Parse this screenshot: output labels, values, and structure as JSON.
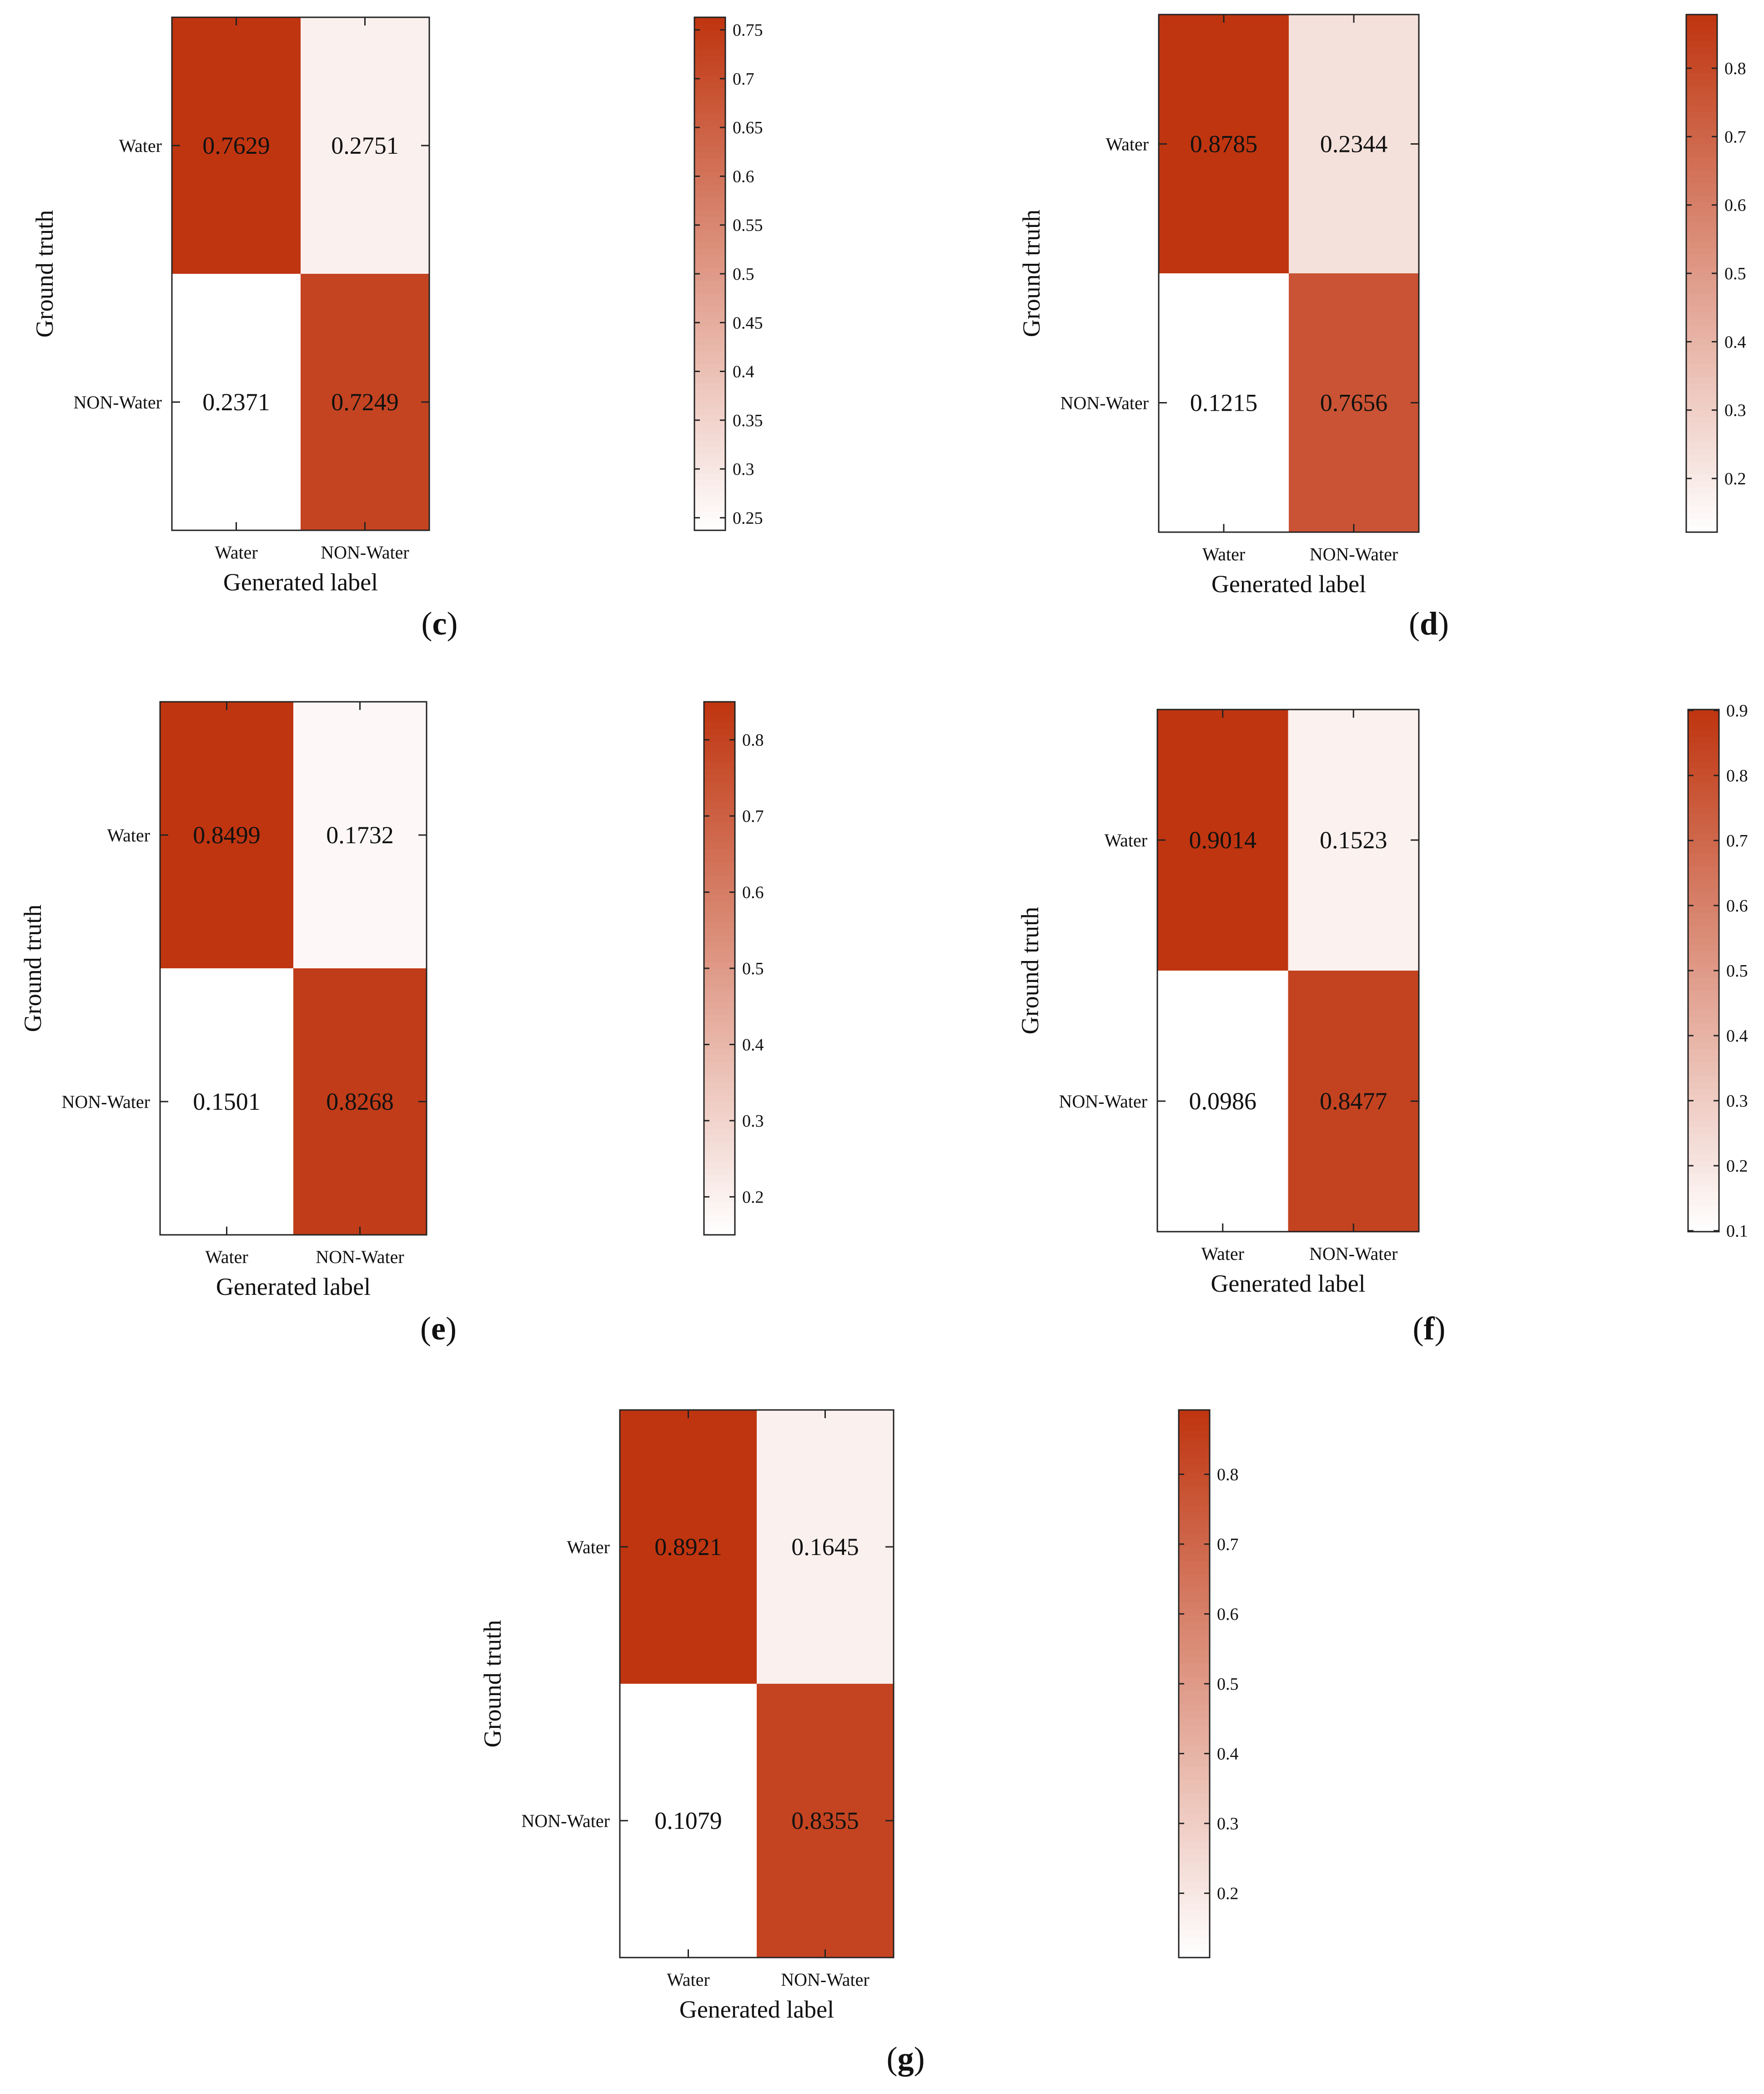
{
  "figure": {
    "color_low": "#ffffff",
    "color_high": "#bf3510"
  },
  "chart_data": [
    {
      "type": "heatmap",
      "panel_label": "c",
      "title": "",
      "xlabel": "Generated label",
      "ylabel": "Ground truth",
      "x_categories": [
        "Water",
        "NON-Water"
      ],
      "y_categories": [
        "Water",
        "NON-Water"
      ],
      "values": [
        [
          0.7629,
          0.2751
        ],
        [
          0.2371,
          0.7249
        ]
      ],
      "value_labels": [
        [
          "0.7629",
          "0.2751"
        ],
        [
          "0.2371",
          "0.7249"
        ]
      ],
      "colorbar": {
        "min": 0.2371,
        "max": 0.7629,
        "ticks": [
          0.25,
          0.3,
          0.35,
          0.4,
          0.45,
          0.5,
          0.55,
          0.6,
          0.65,
          0.7,
          0.75
        ],
        "tick_labels": [
          "0.25",
          "0.3",
          "0.35",
          "0.4",
          "0.45",
          "0.5",
          "0.55",
          "0.6",
          "0.65",
          "0.7",
          "0.75"
        ]
      }
    },
    {
      "type": "heatmap",
      "panel_label": "d",
      "title": "",
      "xlabel": "Generated label",
      "ylabel": "Ground truth",
      "x_categories": [
        "Water",
        "NON-Water"
      ],
      "y_categories": [
        "Water",
        "NON-Water"
      ],
      "values": [
        [
          0.8785,
          0.2344
        ],
        [
          0.1215,
          0.7656
        ]
      ],
      "value_labels": [
        [
          "0.8785",
          "0.2344"
        ],
        [
          "0.1215",
          "0.7656"
        ]
      ],
      "colorbar": {
        "min": 0.1215,
        "max": 0.8785,
        "ticks": [
          0.2,
          0.3,
          0.4,
          0.5,
          0.6,
          0.7,
          0.8
        ],
        "tick_labels": [
          "0.2",
          "0.3",
          "0.4",
          "0.5",
          "0.6",
          "0.7",
          "0.8"
        ]
      }
    },
    {
      "type": "heatmap",
      "panel_label": "e",
      "title": "",
      "xlabel": "Generated label",
      "ylabel": "Ground truth",
      "x_categories": [
        "Water",
        "NON-Water"
      ],
      "y_categories": [
        "Water",
        "NON-Water"
      ],
      "values": [
        [
          0.8499,
          0.1732
        ],
        [
          0.1501,
          0.8268
        ]
      ],
      "value_labels": [
        [
          "0.8499",
          "0.1732"
        ],
        [
          "0.1501",
          "0.8268"
        ]
      ],
      "colorbar": {
        "min": 0.1501,
        "max": 0.8499,
        "ticks": [
          0.2,
          0.3,
          0.4,
          0.5,
          0.6,
          0.7,
          0.8
        ],
        "tick_labels": [
          "0.2",
          "0.3",
          "0.4",
          "0.5",
          "0.6",
          "0.7",
          "0.8"
        ]
      }
    },
    {
      "type": "heatmap",
      "panel_label": "f",
      "title": "",
      "xlabel": "Generated label",
      "ylabel": "Ground truth",
      "x_categories": [
        "Water",
        "NON-Water"
      ],
      "y_categories": [
        "Water",
        "NON-Water"
      ],
      "values": [
        [
          0.9014,
          0.1523
        ],
        [
          0.0986,
          0.8477
        ]
      ],
      "value_labels": [
        [
          "0.9014",
          "0.1523"
        ],
        [
          "0.0986",
          "0.8477"
        ]
      ],
      "colorbar": {
        "min": 0.0986,
        "max": 0.9014,
        "ticks": [
          0.1,
          0.2,
          0.3,
          0.4,
          0.5,
          0.6,
          0.7,
          0.8,
          0.9
        ],
        "tick_labels": [
          "0.1",
          "0.2",
          "0.3",
          "0.4",
          "0.5",
          "0.6",
          "0.7",
          "0.8",
          "0.9"
        ]
      }
    },
    {
      "type": "heatmap",
      "panel_label": "g",
      "title": "",
      "xlabel": "Generated label",
      "ylabel": "Ground truth",
      "x_categories": [
        "Water",
        "NON-Water"
      ],
      "y_categories": [
        "Water",
        "NON-Water"
      ],
      "values": [
        [
          0.8921,
          0.1645
        ],
        [
          0.1079,
          0.8355
        ]
      ],
      "value_labels": [
        [
          "0.8921",
          "0.1645"
        ],
        [
          "0.1079",
          "0.8355"
        ]
      ],
      "colorbar": {
        "min": 0.1079,
        "max": 0.8921,
        "ticks": [
          0.2,
          0.3,
          0.4,
          0.5,
          0.6,
          0.7,
          0.8
        ],
        "tick_labels": [
          "0.2",
          "0.3",
          "0.4",
          "0.5",
          "0.6",
          "0.7",
          "0.8"
        ]
      }
    }
  ]
}
